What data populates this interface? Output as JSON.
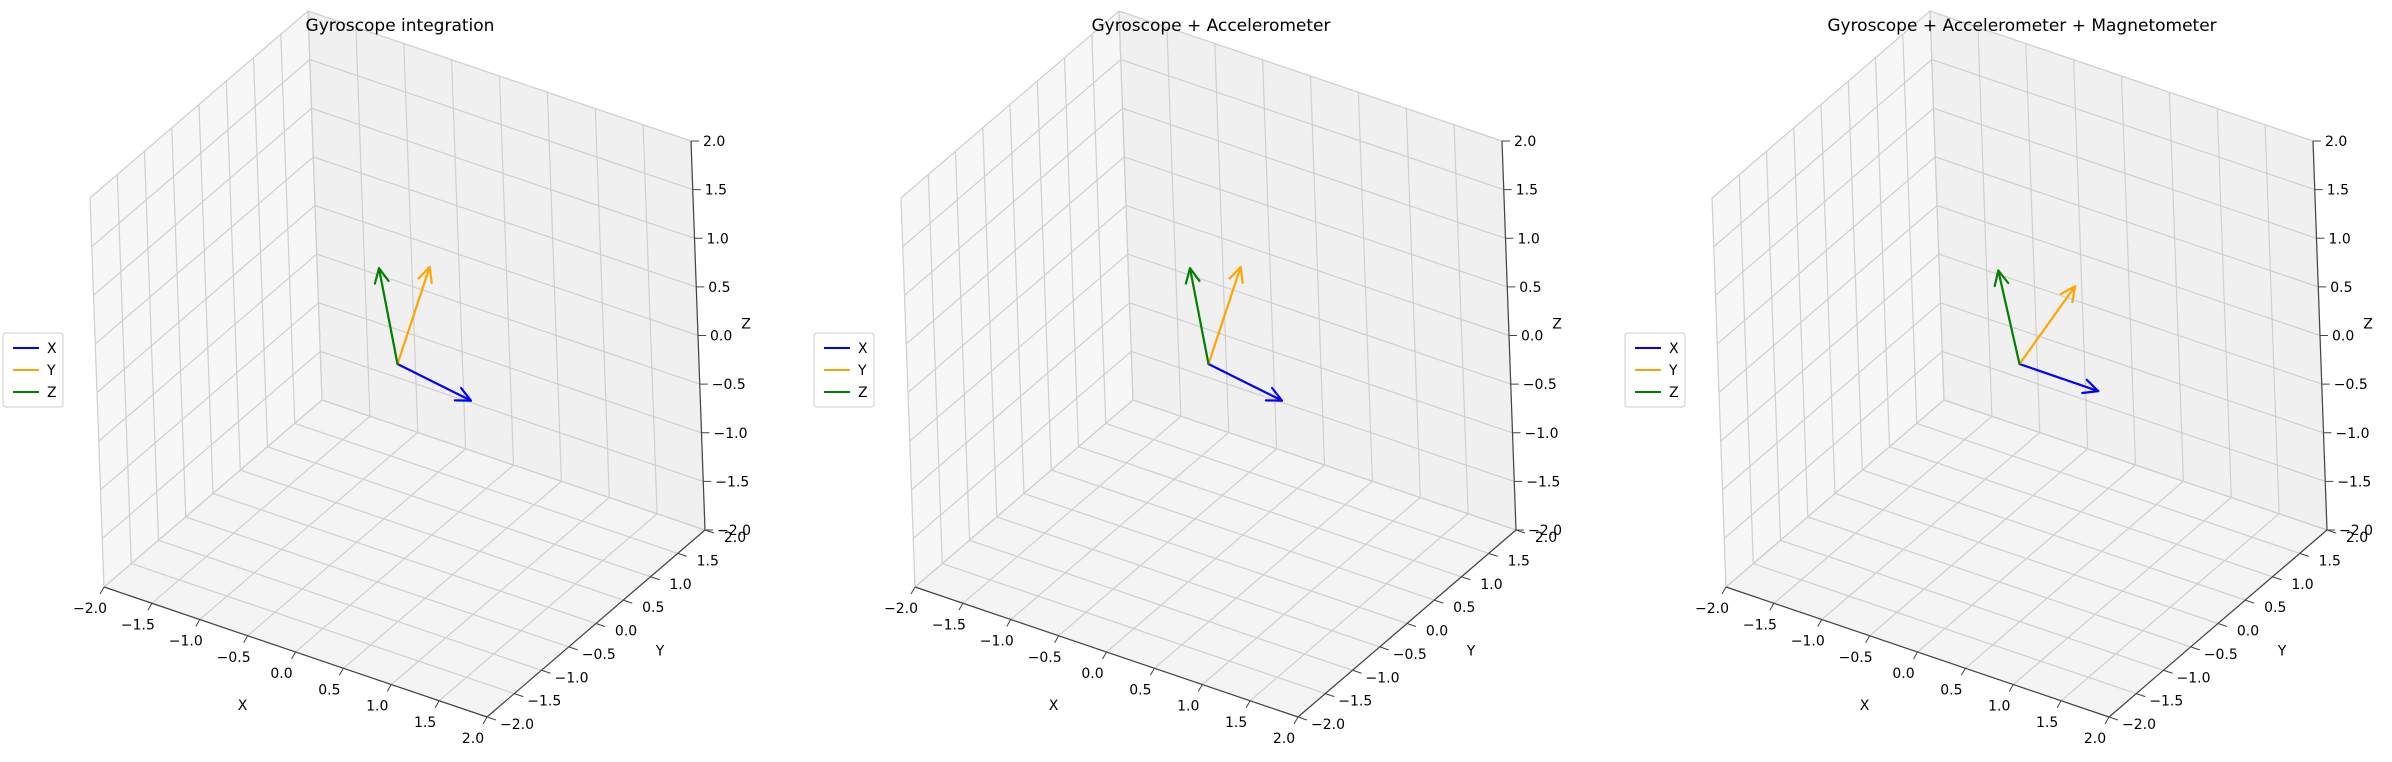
{
  "chart_data": [
    {
      "type": "quiver3d",
      "title": "Gyroscope integration",
      "xlabel": "X",
      "ylabel": "Y",
      "zlabel": "Z",
      "xlim": [
        -2,
        2
      ],
      "ylim": [
        -2,
        2
      ],
      "zlim": [
        -2,
        2
      ],
      "xticks": [
        "−2.0",
        "−1.5",
        "−1.0",
        "−0.5",
        "0.0",
        "0.5",
        "1.0",
        "1.5",
        "2.0"
      ],
      "yticks": [
        "−2.0",
        "−1.5",
        "−1.0",
        "−0.5",
        "0.0",
        "0.5",
        "1.0",
        "1.5",
        "2.0"
      ],
      "zticks": [
        "−2.0",
        "−1.5",
        "−1.0",
        "−0.5",
        "0.0",
        "0.5",
        "1.0",
        "1.5",
        "2.0"
      ],
      "grid": true,
      "legend": "left",
      "origin": [
        0,
        0,
        0
      ],
      "series": [
        {
          "name": "X",
          "color": "#0000ff",
          "vector": [
            1.0,
            -0.4,
            0.15
          ]
        },
        {
          "name": "Y",
          "color": "#ffa500",
          "vector": [
            0.05,
            0.55,
            0.75
          ]
        },
        {
          "name": "Z",
          "color": "#008000",
          "vector": [
            -0.1,
            -0.1,
            1.0
          ]
        }
      ]
    },
    {
      "type": "quiver3d",
      "title": "Gyroscope + Accelerometer",
      "xlabel": "X",
      "ylabel": "Y",
      "zlabel": "Z",
      "xlim": [
        -2,
        2
      ],
      "ylim": [
        -2,
        2
      ],
      "zlim": [
        -2,
        2
      ],
      "xticks": [
        "−2.0",
        "−1.5",
        "−1.0",
        "−0.5",
        "0.0",
        "0.5",
        "1.0",
        "1.5",
        "2.0"
      ],
      "yticks": [
        "−2.0",
        "−1.5",
        "−1.0",
        "−0.5",
        "0.0",
        "0.5",
        "1.0",
        "1.5",
        "2.0"
      ],
      "zticks": [
        "−2.0",
        "−1.5",
        "−1.0",
        "−0.5",
        "0.0",
        "0.5",
        "1.0",
        "1.5",
        "2.0"
      ],
      "grid": true,
      "legend": "left",
      "origin": [
        0,
        0,
        0
      ],
      "series": [
        {
          "name": "X",
          "color": "#0000ff",
          "vector": [
            1.0,
            -0.4,
            0.15
          ]
        },
        {
          "name": "Y",
          "color": "#ffa500",
          "vector": [
            0.05,
            0.55,
            0.75
          ]
        },
        {
          "name": "Z",
          "color": "#008000",
          "vector": [
            -0.1,
            -0.1,
            1.0
          ]
        }
      ]
    },
    {
      "type": "quiver3d",
      "title": "Gyroscope + Accelerometer + Magnetometer",
      "xlabel": "X",
      "ylabel": "Y",
      "zlabel": "Z",
      "xlim": [
        -2,
        2
      ],
      "ylim": [
        -2,
        2
      ],
      "zlim": [
        -2,
        2
      ],
      "xticks": [
        "−2.0",
        "−1.5",
        "−1.0",
        "−0.5",
        "0.0",
        "0.5",
        "1.0",
        "1.5",
        "2.0"
      ],
      "yticks": [
        "−2.0",
        "−1.5",
        "−1.0",
        "−0.5",
        "0.0",
        "0.5",
        "1.0",
        "1.5",
        "2.0"
      ],
      "zticks": [
        "−2.0",
        "−1.5",
        "−1.0",
        "−0.5",
        "0.0",
        "0.5",
        "1.0",
        "1.5",
        "2.0"
      ],
      "grid": true,
      "legend": "left",
      "origin": [
        0,
        0,
        0
      ],
      "series": [
        {
          "name": "X",
          "color": "#0000ff",
          "vector": [
            1.0,
            -0.3,
            0.2
          ]
        },
        {
          "name": "Y",
          "color": "#ffa500",
          "vector": [
            0.35,
            0.45,
            0.7
          ]
        },
        {
          "name": "Z",
          "color": "#008000",
          "vector": [
            -0.1,
            -0.15,
            1.0
          ]
        }
      ]
    }
  ]
}
